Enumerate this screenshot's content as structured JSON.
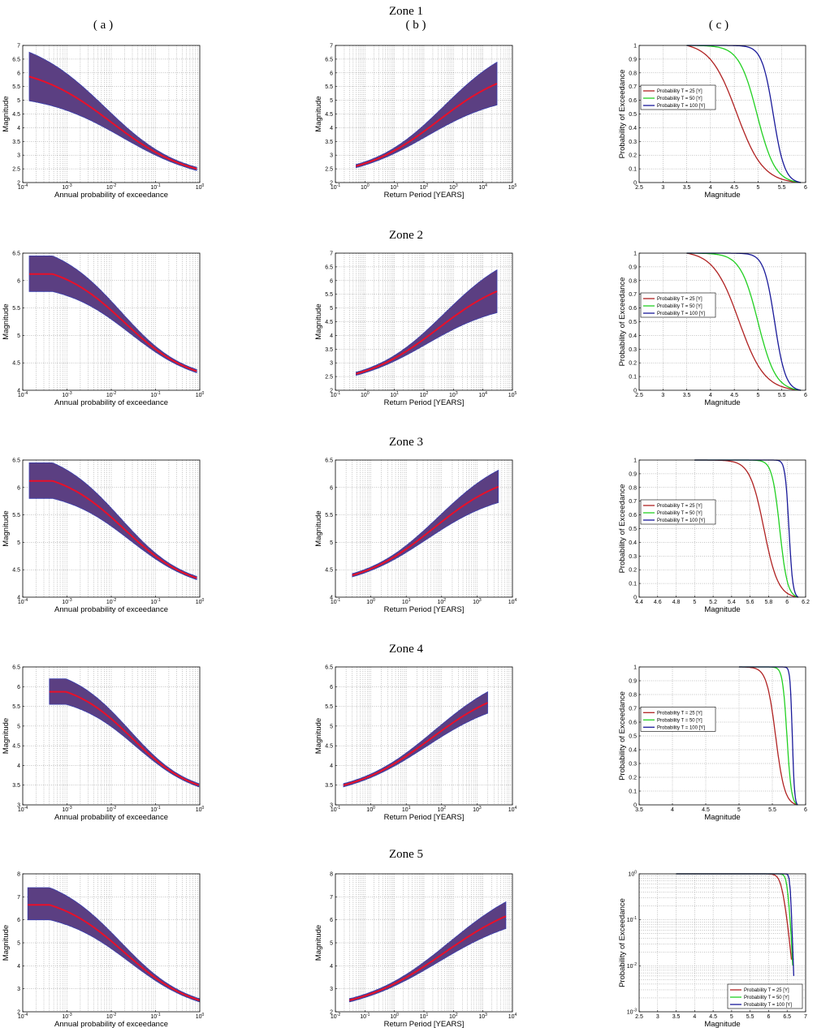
{
  "column_headers": [
    "( a )",
    "( b )",
    "( c )"
  ],
  "colors": {
    "band": "#5b3f82",
    "band_edge": "#3a3fae",
    "median": "#e8102a",
    "t25": "#b02222",
    "t50": "#22d022",
    "t100": "#1a1a9a",
    "grid": "#8a8a8a"
  },
  "legend_labels": [
    "Probability T = 25 [Y]",
    "Probability T = 50 [Y]",
    "Probability T = 100 [Y]"
  ],
  "chart_data": [
    {
      "zone": "Zone 1",
      "panel": "a",
      "type": "area",
      "xlabel": "Annual probability of exceedance",
      "ylabel": "Magnitude",
      "xscale": "log",
      "xlim": [
        0.0001,
        1
      ],
      "ylim": [
        2,
        7
      ],
      "y_ticks": [
        "2",
        "2.5",
        "3",
        "3.5",
        "4",
        "4.5",
        "5",
        "5.5",
        "6",
        "6.5",
        "7"
      ],
      "x_ticks": [
        "10-4",
        "10-3",
        "10-2",
        "10-1",
        "100"
      ],
      "m_max": 5.9,
      "m_min": 2.5,
      "band_upper": 6.8,
      "band_lower": 5.0,
      "x_start": 0.00014,
      "x_knee": 0.01,
      "x_end": 0.85
    },
    {
      "zone": "Zone 1",
      "panel": "b",
      "type": "area",
      "xlabel": "Return Period [YEARS]",
      "ylabel": "Magnitude",
      "xscale": "log",
      "xlim": [
        0.1,
        100000
      ],
      "ylim": [
        2,
        7
      ],
      "y_ticks": [
        "2",
        "2.5",
        "3",
        "3.5",
        "4",
        "4.5",
        "5",
        "5.5",
        "6",
        "6.5",
        "7"
      ],
      "x_ticks": [
        "10-1",
        "100",
        "101",
        "102",
        "103",
        "104",
        "105"
      ],
      "m_max": 5.9,
      "m_min": 2.6,
      "band_upper": 6.8,
      "band_lower": 5.0,
      "x_start": 0.5,
      "x_knee": 300,
      "x_end": 30000
    },
    {
      "zone": "Zone 1",
      "panel": "c",
      "type": "line",
      "xlabel": "Magnitude",
      "ylabel": "Probability of Exceedance",
      "xlim": [
        2.5,
        6
      ],
      "ylim": [
        0,
        1
      ],
      "x_ticks": [
        "2.5",
        "3",
        "3.5",
        "4",
        "4.5",
        "5",
        "5.5",
        "6"
      ],
      "y_ticks": [
        "0",
        "0.1",
        "0.2",
        "0.3",
        "0.4",
        "0.5",
        "0.6",
        "0.7",
        "0.8",
        "0.9",
        "1"
      ],
      "x_start": 3.5,
      "x_end": 5.9,
      "half_points": [
        4.55,
        4.98,
        5.32
      ],
      "legend": "left"
    },
    {
      "zone": "Zone 2",
      "panel": "a",
      "type": "area",
      "xlabel": "Annual probability of exceedance",
      "ylabel": "Magnitude",
      "xscale": "log",
      "xlim": [
        0.0001,
        1
      ],
      "ylim": [
        4,
        6.5
      ],
      "y_ticks": [
        "4",
        "4.5",
        "5",
        "5.5",
        "6",
        "6.5"
      ],
      "x_ticks": [
        "10-4",
        "10-3",
        "10-2",
        "10-1",
        "100"
      ],
      "m_max": 6.12,
      "m_min": 4.35,
      "band_upper": 6.45,
      "band_lower": 5.8,
      "x_start": 0.00014,
      "x_knee": 0.02,
      "x_end": 0.85
    },
    {
      "zone": "Zone 2",
      "panel": "b",
      "type": "area",
      "xlabel": "Return Period [YEARS]",
      "ylabel": "Magnitude",
      "xscale": "log",
      "xlim": [
        0.1,
        100000
      ],
      "ylim": [
        2,
        7
      ],
      "y_ticks": [
        "2",
        "2.5",
        "3",
        "3.5",
        "4",
        "4.5",
        "5",
        "5.5",
        "6",
        "6.5",
        "7"
      ],
      "x_ticks": [
        "10-1",
        "100",
        "101",
        "102",
        "103",
        "104",
        "105"
      ],
      "m_max": 5.9,
      "m_min": 2.6,
      "band_upper": 6.8,
      "band_lower": 5.0,
      "x_start": 0.5,
      "x_knee": 300,
      "x_end": 30000
    },
    {
      "zone": "Zone 2",
      "panel": "c",
      "type": "line",
      "xlabel": "Magnitude",
      "ylabel": "Probability of Exceedance",
      "xlim": [
        2.5,
        6
      ],
      "ylim": [
        0,
        1
      ],
      "x_ticks": [
        "2.5",
        "3",
        "3.5",
        "4",
        "4.5",
        "5",
        "5.5",
        "6"
      ],
      "y_ticks": [
        "0",
        "0.1",
        "0.2",
        "0.3",
        "0.4",
        "0.5",
        "0.6",
        "0.7",
        "0.8",
        "0.9",
        "1"
      ],
      "x_start": 3.5,
      "x_end": 5.9,
      "half_points": [
        4.6,
        5.0,
        5.35
      ],
      "legend": "left"
    },
    {
      "zone": "Zone 3",
      "panel": "a",
      "type": "area",
      "xlabel": "Annual probability of exceedance",
      "ylabel": "Magnitude",
      "xscale": "log",
      "xlim": [
        0.0001,
        1
      ],
      "ylim": [
        4,
        6.5
      ],
      "y_ticks": [
        "4",
        "4.5",
        "5",
        "5.5",
        "6",
        "6.5"
      ],
      "x_ticks": [
        "10-4",
        "10-3",
        "10-2",
        "10-1",
        "100"
      ],
      "m_max": 6.12,
      "m_min": 4.35,
      "band_upper": 6.45,
      "band_lower": 5.8,
      "x_start": 0.00014,
      "x_knee": 0.02,
      "x_end": 0.85
    },
    {
      "zone": "Zone 3",
      "panel": "b",
      "type": "area",
      "xlabel": "Return Period [YEARS]",
      "ylabel": "Magnitude",
      "xscale": "log",
      "xlim": [
        0.1,
        10000
      ],
      "ylim": [
        4,
        6.5
      ],
      "y_ticks": [
        "4",
        "4.5",
        "5",
        "5.5",
        "6",
        "6.5"
      ],
      "x_ticks": [
        "10-1",
        "100",
        "101",
        "102",
        "103",
        "104"
      ],
      "m_max": 6.12,
      "m_min": 4.4,
      "band_upper": 6.45,
      "band_lower": 5.8,
      "x_start": 0.3,
      "x_knee": 60,
      "x_end": 4000
    },
    {
      "zone": "Zone 3",
      "panel": "c",
      "type": "line",
      "xlabel": "Magnitude",
      "ylabel": "Probability of Exceedance",
      "xlim": [
        4.4,
        6.2
      ],
      "ylim": [
        0,
        1
      ],
      "x_ticks": [
        "4.4",
        "4.6",
        "4.8",
        "5",
        "5.2",
        "5.4",
        "5.6",
        "5.8",
        "6",
        "6.2"
      ],
      "y_ticks": [
        "0",
        "0.1",
        "0.2",
        "0.3",
        "0.4",
        "0.5",
        "0.6",
        "0.7",
        "0.8",
        "0.9",
        "1"
      ],
      "x_start": 5.0,
      "x_end": 6.12,
      "half_points": [
        5.75,
        5.92,
        6.02
      ],
      "legend": "left"
    },
    {
      "zone": "Zone 4",
      "panel": "a",
      "type": "area",
      "xlabel": "Annual probability of exceedance",
      "ylabel": "Magnitude",
      "xscale": "log",
      "xlim": [
        0.0001,
        1
      ],
      "ylim": [
        3,
        6.5
      ],
      "y_ticks": [
        "3",
        "3.5",
        "4",
        "4.5",
        "5",
        "5.5",
        "6",
        "6.5"
      ],
      "x_ticks": [
        "10-4",
        "10-3",
        "10-2",
        "10-1",
        "100"
      ],
      "m_max": 5.87,
      "m_min": 3.5,
      "band_upper": 6.2,
      "band_lower": 5.55,
      "x_start": 0.0004,
      "x_knee": 0.03,
      "x_end": 0.95
    },
    {
      "zone": "Zone 4",
      "panel": "b",
      "type": "area",
      "xlabel": "Return Period [YEARS]",
      "ylabel": "Magnitude",
      "xscale": "log",
      "xlim": [
        0.1,
        10000
      ],
      "ylim": [
        3,
        6.5
      ],
      "y_ticks": [
        "3",
        "3.5",
        "4",
        "4.5",
        "5",
        "5.5",
        "6",
        "6.5"
      ],
      "x_ticks": [
        "10-1",
        "100",
        "101",
        "102",
        "103",
        "104"
      ],
      "m_max": 5.87,
      "m_min": 3.5,
      "band_upper": 6.2,
      "band_lower": 5.55,
      "x_start": 0.17,
      "x_knee": 50,
      "x_end": 2000
    },
    {
      "zone": "Zone 4",
      "panel": "c",
      "type": "line",
      "xlabel": "Magnitude",
      "ylabel": "Probability of Exceedance",
      "xlim": [
        3.5,
        6
      ],
      "ylim": [
        0,
        1
      ],
      "x_ticks": [
        "3.5",
        "4",
        "4.5",
        "5",
        "5.5",
        "6"
      ],
      "y_ticks": [
        "0",
        "0.1",
        "0.2",
        "0.3",
        "0.4",
        "0.5",
        "0.6",
        "0.7",
        "0.8",
        "0.9",
        "1"
      ],
      "x_start": 5.0,
      "x_end": 5.88,
      "half_points": [
        5.55,
        5.72,
        5.8
      ],
      "legend": "left"
    },
    {
      "zone": "Zone 5",
      "panel": "a",
      "type": "area",
      "xlabel": "Annual probability of exceedance",
      "ylabel": "Magnitude",
      "xscale": "log",
      "xlim": [
        0.0001,
        1
      ],
      "ylim": [
        2,
        8
      ],
      "y_ticks": [
        "2",
        "3",
        "4",
        "5",
        "6",
        "7",
        "8"
      ],
      "x_ticks": [
        "10-4",
        "10-3",
        "10-2",
        "10-1",
        "100"
      ],
      "m_max": 6.65,
      "m_min": 2.5,
      "band_upper": 7.4,
      "band_lower": 6.0,
      "x_start": 0.00013,
      "x_knee": 0.02,
      "x_end": 0.99
    },
    {
      "zone": "Zone 5",
      "panel": "b",
      "type": "area",
      "xlabel": "Return Period [YEARS]",
      "ylabel": "Magnitude",
      "xscale": "log",
      "xlim": [
        0.01,
        10000
      ],
      "ylim": [
        2,
        8
      ],
      "y_ticks": [
        "2",
        "3",
        "4",
        "5",
        "6",
        "7",
        "8"
      ],
      "x_ticks": [
        "10-2",
        "10-1",
        "100",
        "101",
        "102",
        "103",
        "104"
      ],
      "m_max": 6.65,
      "m_min": 2.5,
      "band_upper": 7.4,
      "band_lower": 6.0,
      "x_start": 0.03,
      "x_knee": 50,
      "x_end": 6000
    },
    {
      "zone": "Zone 5",
      "panel": "c",
      "type": "line",
      "xlabel": "Magnitude",
      "ylabel": "Probability of Exceedance",
      "yscale": "log",
      "xlim": [
        2.5,
        7
      ],
      "ylim": [
        0.001,
        1
      ],
      "x_ticks": [
        "2.5",
        "3",
        "3.5",
        "4",
        "4.5",
        "5",
        "5.5",
        "6",
        "6.5",
        "7"
      ],
      "y_ticks": [
        "10-3",
        "10-2",
        "10-1",
        "100"
      ],
      "x_start": 3.5,
      "x_end": 6.68,
      "half_points": [
        6.35,
        6.5,
        6.58
      ],
      "legend": "bottom-right"
    }
  ]
}
